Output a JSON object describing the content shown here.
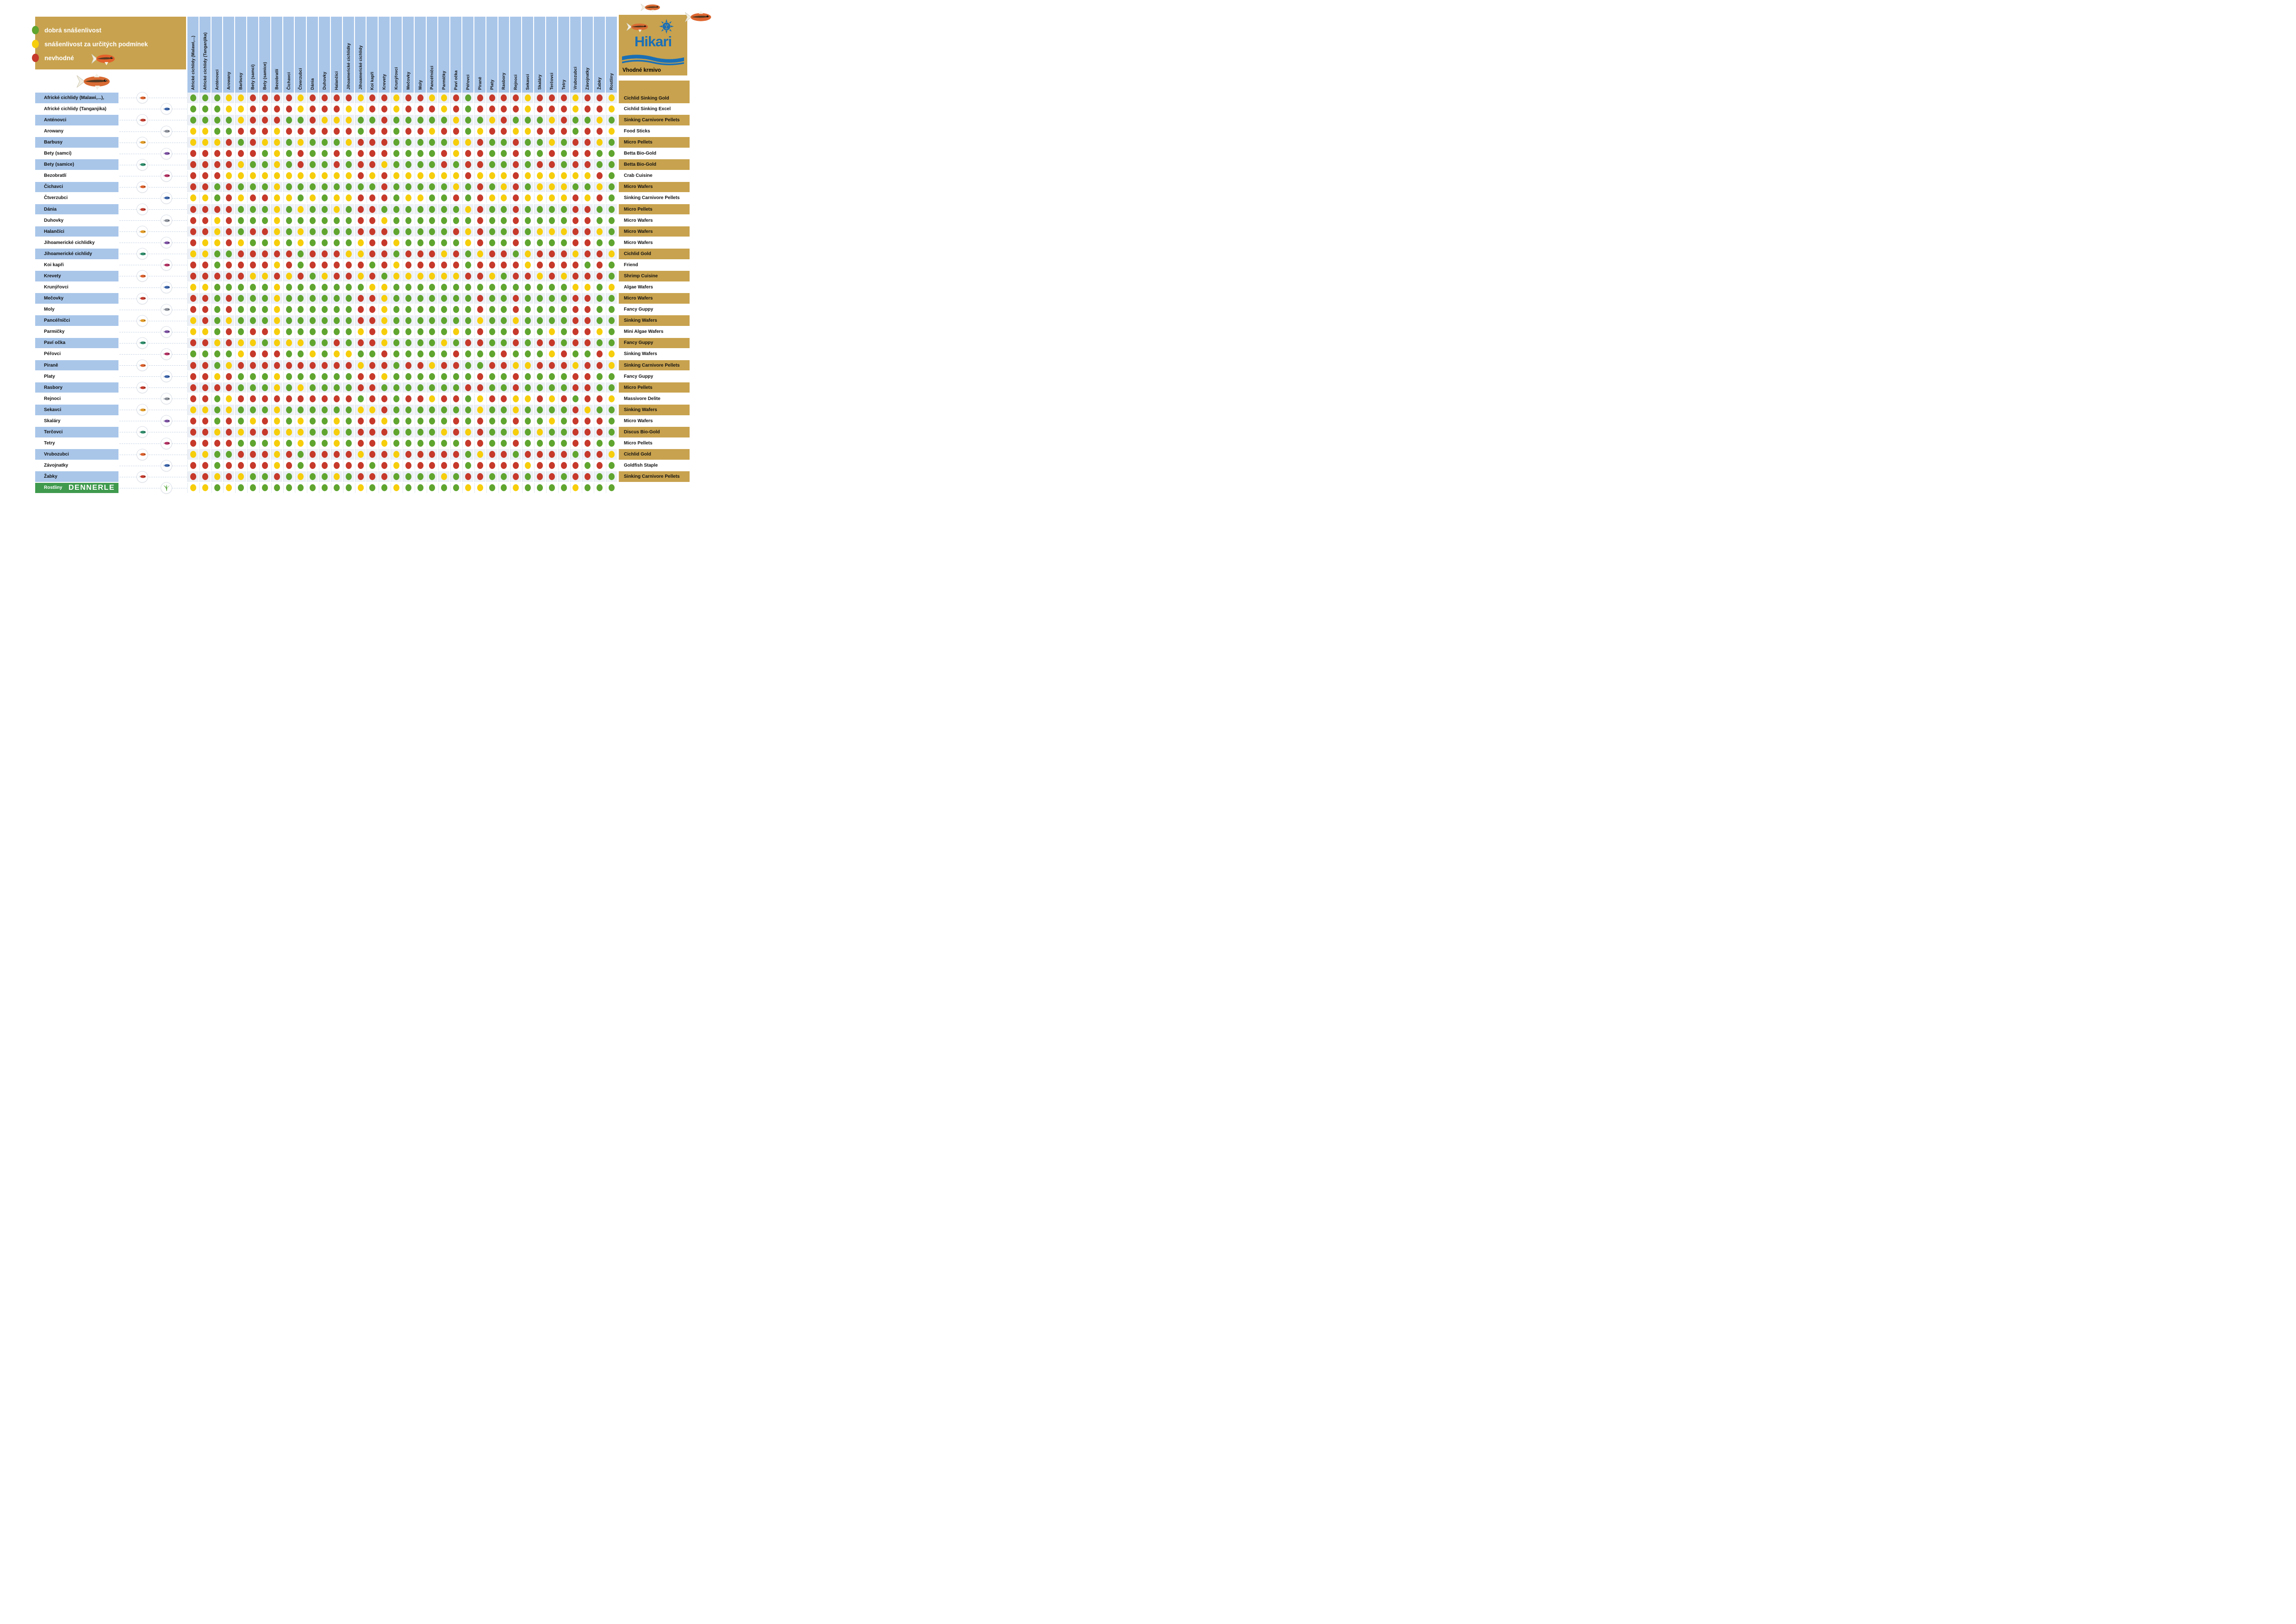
{
  "page_title": "Tabulka snášenlivosti akvarijních ryb",
  "legend": {
    "items": [
      {
        "code": "G",
        "color": "#5FA52F",
        "label": "dobrá snášenlivost"
      },
      {
        "code": "Y",
        "color": "#F6CE0C",
        "label": "snášenlivost za určitých podmínek"
      },
      {
        "code": "R",
        "color": "#C6392B",
        "label": "nevhodné"
      }
    ],
    "box_color": "#C8A24E"
  },
  "brand": {
    "name": "Hikari",
    "food_header": "Vhodné krmivo",
    "logo_color": "#1a6fb5",
    "box_color": "#C8A24E"
  },
  "dennerle": {
    "row_label": "Rostliny",
    "brand": "DENNERLE",
    "bar_color": "#3F9A4E"
  },
  "colors": {
    "G": "#5FA52F",
    "Y": "#F6CE0C",
    "R": "#C6392B",
    "label_blue": "#A9C6E9",
    "band_gray": "#EDF1F6",
    "gold": "#C8A24E",
    "white": "#FFFFFF"
  },
  "chart_data": {
    "type": "heatmap",
    "title": "Kompatibilita druhů (dobrá / za určitých podmínek / nevhodné)",
    "legend_position": "top-left",
    "columns": [
      "Africké cichlidy (Malawi,...)",
      "Africké cichlidy (Tanganjika)",
      "Anténovci",
      "Arowany",
      "Barbusy",
      "Bety (samci)",
      "Bety (samice)",
      "Bezobratlí",
      "Čichavci",
      "Čtverzubci",
      "Dánia",
      "Duhovky",
      "Halančíci",
      "Jihoamerické cichlidky",
      "Jihoamerické cichlidy",
      "Koi kapři",
      "Krevety",
      "Krunýřovci",
      "Mečovky",
      "Moly",
      "Pancéřníčci",
      "Parmičky",
      "Paví očka",
      "Péřovci",
      "Piraně",
      "Platy",
      "Rasbory",
      "Rejnoci",
      "Sekavci",
      "Skaláry",
      "Terčovci",
      "Tetry",
      "Vrubozubci",
      "Závojnatky",
      "Žabky",
      "Rostliny"
    ],
    "rows": [
      "Africké cichlidy (Malawi,...),",
      "Africké cichlidy (Tanganjika)",
      "Anténovci",
      "Arowany",
      "Barbusy",
      "Bety (samci)",
      "Bety (samice)",
      "Bezobratlí",
      "Čichavci",
      "Čtverzubci",
      "Dánia",
      "Duhovky",
      "Halančíci",
      "Jihoamerické cichlidky",
      "Jihoamerické cichlidy",
      "Koi kapři",
      "Krevety",
      "Krunýřovci",
      "Mečovky",
      "Moly",
      "Pancéřníčci",
      "Parmičky",
      "Paví očka",
      "Péřovci",
      "Piraně",
      "Platy",
      "Rasbory",
      "Rejnoci",
      "Sekavci",
      "Skaláry",
      "Terčovci",
      "Tetry",
      "Vrubozubci",
      "Závojnatky",
      "Žabky",
      "Rostliny"
    ],
    "value_legend": {
      "G": "dobrá snášenlivost",
      "Y": "snášenlivost za určitých podmínek",
      "R": "nevhodné"
    },
    "matrix": [
      "GGGYYRRRRYRRRRYRRYRRYYRGRRRRYRRRYRRY",
      "GGGYYRRRRYRRRYYRRYRRRYRGRRRRYRRRYRRY",
      "GGGGYRRRGGRYYYGGRGGGGGYGGYRGGGYRGGYG",
      "YYGGRRRYRRRRRRGRRGRRYRRGYRRYYRRRGRRY",
      "YYYRGRYYGYGGGYRRRGGGGGYYRGGRGGYGRRYG",
      "RRRRRRGYGRGGRGRRRGGGGRYRRGGRGGRGRRGG",
      "RRRRYGGYGRGGRGRRYGGGGRGRRGGRGRRGRRGG",
      "RRRYYYYYYYYYYYRYRYYYYYYRYYYRYYYYYYRG",
      "RRGRGGGYGGGGGGGGRGGGGGYGRGYRGYYYGGYG",
      "YYGRYRRYYGYGYYRRRGYYGGRGRYYRYYYYRYRG",
      "RRRRGGGYGYGGYGRRGGGGGGGYRGGRGGGGRRGG",
      "RRYRGGGYGGGGGGRRYGGGGGGGRGGRGGGGRRGG",
      "RRYRGRRYGYGGGGRRRGGGGGRYRGGRGYYYRRYG",
      "RYYRYGGYGYGGGGYRRYGGGGGYRGGRGGGGRRGG",
      "YYGGRRRRRGRRRYYRRGRRRYRGYRRGYRRRYRRY",
      "RRGRRRRYRGRRRRRGRYRRRRRGRRRRYRRRRGRG",
      "RRRRRYYRYRGYRRYRGYYYYYYRRYGRRYRYRRRG",
      "YYGGGGGYGGGGGGGYYGGGGGGGGGGGGGGGYYGY",
      "RRGRGGGYGGGGGGRRYGGGGGGGRGGRGGGGRRGG",
      "RRGRGGGYGGGGGGRRYGGGGGGGRGGRGGGGRRGG",
      "YRGYGGGYGGGGGGRRYGGGGGGGYGGYGGGGRRGG",
      "YYGRGRRYGGGGGGYRYGGGGGYGRGGRGGYGRRYG",
      "RRYRYYGYYYGGRGRRYGGGGYGRRGGRGRRGRRGG",
      "GGGGYRRRGGYGYYGGRGGGGGRGGGRGGGYRGGRY",
      "RRGYRRRRRRRRRRYRRGRRYRRGGRRYYRRRYRRY",
      "RRYRGGGYGGGGGGRRYGGGGGGGRGGRGGGGRRGG",
      "RRRRGGGYGYGGGGRRGGGGGGGRRGGRGGGGRRGG",
      "RRGYRRRRRRRRRRGRRGRRYRRGYRRYYRYRGRRY",
      "YYGYGGGYGGGGGGYYRGGGGGGGYGGYGGGGRYGG",
      "RRGRGYRYGYGGYGRRYGGGGGRGRGGRGGYGRRRG",
      "RRYRYRRYYYGGYGRRRGGGGYRYRGGYGYGGRRRG",
      "RRRRGGGYGYGGYGRRYGGGGGGRRGGRGGGGRRGG",
      "YYGGRRRYRGRRRRYRRYRRRRRGYRRGRRRRGRRY",
      "RRGRRRRYRGRRRRRGRYRRRRRGRRRRYRRRRGRG",
      "RRYRYGGRGYGGYGRRRGGGGYGRRGGRGRRGRRGG",
      "YYGYGGGGGGGGGGYGGYGGGGGYYGGYGGGGYGGG"
    ],
    "foods": [
      "Cichlid Sinking Gold",
      "Cichlid Sinking Excel",
      "Sinking Carnivore Pellets",
      "Food Sticks",
      "Micro Pellets",
      "Betta Bio-Gold",
      "Betta Bio-Gold",
      "Crab Cuisine",
      "Micro Wafers",
      "Sinking Carnivore Pellets",
      "Micro Pellets",
      "Micro Wafers",
      "Micro Wafers",
      "Micro Wafers",
      "Cichlid Gold",
      "Friend",
      "Shrimp Cuisine",
      "Algae Wafers",
      "Micro Wafers",
      "Fancy Guppy",
      "Sinking Wafers",
      "Mini Algae Wafers",
      "Fancy Guppy",
      "Sinking Wafers",
      "Sinking Carnivore Pellets",
      "Fancy Guppy",
      "Micro Pellets",
      "Massivore Delite",
      "Sinking Wafers",
      "Micro Wafers",
      "Discus Bio-Gold",
      "Micro Pellets",
      "Cichlid Gold",
      "Goldfish Staple",
      "Sinking Carnivore Pellets",
      ""
    ]
  },
  "fish_palette": [
    "#D95F2B",
    "#3B63A8",
    "#C23B2E",
    "#8A8F98",
    "#E09A27",
    "#7A4FA0",
    "#2E8C6A",
    "#B03060"
  ]
}
